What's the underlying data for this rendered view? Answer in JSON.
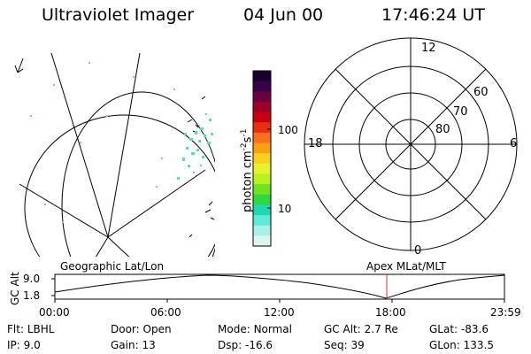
{
  "header": {
    "title": "Ultraviolet Imager",
    "date": "04 Jun 00",
    "time": "17:46:24 UT"
  },
  "colorbar": {
    "label": "photon cm",
    "label_exp1": "-2",
    "label_mid": "s",
    "label_exp2": "-1",
    "ticks": [
      "100",
      "10"
    ],
    "colors": [
      "#1a0030",
      "#3a0048",
      "#6a0040",
      "#9a0028",
      "#c80010",
      "#e83010",
      "#f87020",
      "#f8a010",
      "#f8d020",
      "#e8f030",
      "#b8f020",
      "#70e020",
      "#30d840",
      "#20d8b0",
      "#60e8d8",
      "#a8f0e8",
      "#e0f4f0"
    ]
  },
  "polar": {
    "rings": [
      "80",
      "70",
      "60"
    ],
    "hours": [
      "12",
      "18",
      "6",
      "0"
    ]
  },
  "timeline": {
    "left_label": "Geographic Lat/Lon",
    "right_label": "Apex MLat/MLT",
    "axis_label": "GC Alt",
    "y_max": "9.0",
    "y_min": "1.8",
    "time_ticks": [
      "00:00",
      "06:00",
      "12:00",
      "18:00",
      "23:59"
    ],
    "current_time_color": "#d03030"
  },
  "info": {
    "row1": [
      {
        "label": "Flt:",
        "value": "LBHL"
      },
      {
        "label": "Door:",
        "value": "Open"
      },
      {
        "label": "Mode:",
        "value": "Normal"
      },
      {
        "label": "GC Alt:",
        "value": "2.7 Re"
      },
      {
        "label": "GLat:",
        "value": "-83.6"
      }
    ],
    "row2": [
      {
        "label": "IP:",
        "value": "9.0"
      },
      {
        "label": "Gain:",
        "value": "13"
      },
      {
        "label": "Dsp:",
        "value": "-16.6"
      },
      {
        "label": "Seq:",
        "value": "39"
      },
      {
        "label": "GLon:",
        "value": "133.5"
      }
    ]
  }
}
